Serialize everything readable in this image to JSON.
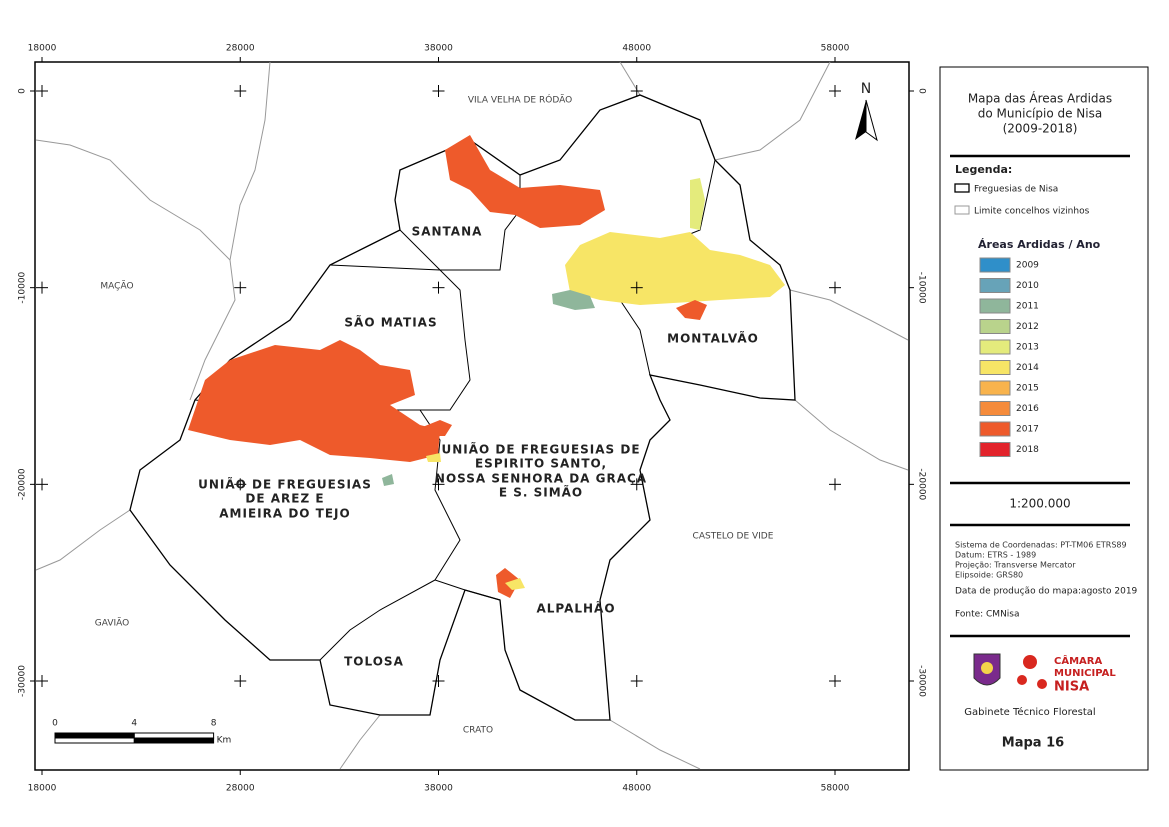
{
  "map": {
    "grid": {
      "x_ticks": [
        18000,
        28000,
        38000,
        48000,
        58000
      ],
      "y_ticks": [
        0,
        -10000,
        -20000,
        -30000
      ]
    },
    "north_label": "N",
    "neighbors": [
      "VILA VELHA DE RÓDÃO",
      "MAÇÃO",
      "GAVIÃO",
      "CRATO",
      "CASTELO DE VIDE"
    ],
    "parishes": {
      "santana": "SANTANA",
      "sao_matias": "SÃO MATIAS",
      "montalvao": "MONTALVÃO",
      "arez": [
        "UNIÃO DE FREGUESIAS",
        "DE AREZ E",
        "AMIEIRA DO TEJO"
      ],
      "espirito_santo": [
        "UNIÃO DE FREGUESIAS DE",
        "ESPIRITO SANTO,",
        "NOSSA SENHORA DA GRAÇA",
        "E S. SIMÃO"
      ],
      "alpalhao": "ALPALHÃO",
      "tolosa": "TOLOSA"
    },
    "scale_bar": {
      "ticks": [
        0,
        4,
        8
      ],
      "unit": "Km"
    }
  },
  "panel": {
    "title": [
      "Mapa das Áreas Ardidas",
      "do Município de Nisa",
      "(2009-2018)"
    ],
    "legend_heading": "Legenda:",
    "boundary_items": [
      "Freguesias de Nisa",
      "Limite concelhos vizinhos"
    ],
    "areas_heading": "Áreas Ardidas / Ano",
    "years": [
      {
        "label": "2009",
        "color": "#2f8fc9"
      },
      {
        "label": "2010",
        "color": "#67a3b8"
      },
      {
        "label": "2011",
        "color": "#8fb69b"
      },
      {
        "label": "2012",
        "color": "#b9d38c"
      },
      {
        "label": "2013",
        "color": "#e4eb7c"
      },
      {
        "label": "2014",
        "color": "#f7e566"
      },
      {
        "label": "2015",
        "color": "#f8b34c"
      },
      {
        "label": "2016",
        "color": "#f58b3b"
      },
      {
        "label": "2017",
        "color": "#ee5a2b"
      },
      {
        "label": "2018",
        "color": "#e2232b"
      }
    ],
    "scale": "1:200.000",
    "metadata": [
      "Sistema de Coordenadas: PT-TM06 ETRS89",
      "Datum:  ETRS - 1989",
      "Projeção: Transverse Mercator",
      "Elipsoide: GRS80"
    ],
    "production_date": "Data de produção do mapa:agosto 2019",
    "source": "Fonte: CMNisa",
    "logo_text": [
      "CÂMARA",
      "MUNICIPAL",
      "NISA"
    ],
    "department": "Gabinete Técnico Florestal",
    "map_number": "Mapa 16"
  }
}
